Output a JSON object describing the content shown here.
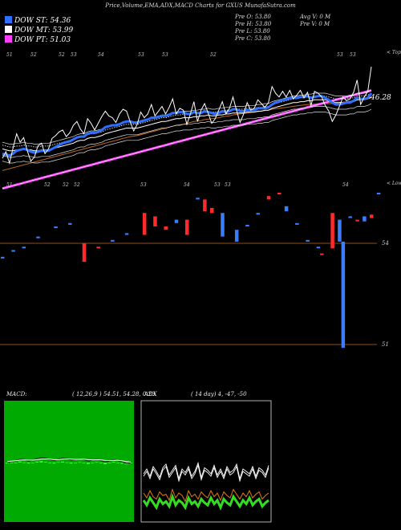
{
  "header": {
    "title": "Price,Volume,EMA,ADX,MACD Charts for GXUS MunafaSutra.com",
    "legend": [
      {
        "label": "DOW ST: 54.36",
        "color": "#2f6fff"
      },
      {
        "label": "DOW MT: 53.99",
        "color": "#ffffff"
      },
      {
        "label": "DOW PT: 51.03",
        "color": "#ff3cff"
      }
    ],
    "stats_left": [
      "Pre  O: 53.80",
      "Pre  H: 53.80",
      "Pre  L: 53.80",
      "Pre  C: 53.80"
    ],
    "stats_right": [
      "Avg V: 0  M",
      "Pre  V: 0  M"
    ]
  },
  "colors": {
    "price": "#ffffff",
    "ema_short": "#2f6fff",
    "ema_mid": "#ffffff",
    "ema_long": "#ff3cff",
    "ema_orange": "#c2691a",
    "hline": "#c2691a",
    "bar_up": "#ff2a2a",
    "bar_down": "#3a7dff",
    "macd_bg": "#00aa00"
  },
  "chart_data": [
    {
      "type": "line",
      "series": [
        {
          "name": "",
          "role": "price",
          "values": [
            48.5,
            49.2,
            48.0,
            49.6,
            51.1,
            50.2,
            50.7,
            49.3,
            48.2,
            48.6,
            49.8,
            50.1,
            49.0,
            49.5,
            50.6,
            50.9,
            51.3,
            51.5,
            50.8,
            51.2,
            52.0,
            52.4,
            51.6,
            51.1,
            52.7,
            52.2,
            51.5,
            52.2,
            52.9,
            53.5,
            53.0,
            52.8,
            52.3,
            53.2,
            53.7,
            53.5,
            52.4,
            51.4,
            52.1,
            53.4,
            52.8,
            53.2,
            54.2,
            53.0,
            53.5,
            54.0,
            53.2,
            53.9,
            54.8,
            53.2,
            53.8,
            53.6,
            52.1,
            53.2,
            54.5,
            52.4,
            53.6,
            54.3,
            53.3,
            52.2,
            52.7,
            53.6,
            54.5,
            53.2,
            53.8,
            55.0,
            53.6,
            52.3,
            53.2,
            54.4,
            53.6,
            53.8,
            54.7,
            54.3,
            53.9,
            54.4,
            56.1,
            55.4,
            55.0,
            55.6,
            55.0,
            55.7,
            54.8,
            55.2,
            55.7,
            54.9,
            55.5,
            54.1,
            55.6,
            55.4,
            55.0,
            54.1,
            53.5,
            52.4,
            53.1,
            54.0,
            55.0,
            54.6,
            54.8,
            55.5,
            56.8,
            54.2,
            55.0,
            55.6,
            58.2
          ]
        },
        {
          "name": "",
          "role": "ema_short",
          "values": [
            49.0,
            48.9,
            48.8,
            49.0,
            49.3,
            49.4,
            49.5,
            49.4,
            49.2,
            49.1,
            49.2,
            49.3,
            49.3,
            49.3,
            49.5,
            49.7,
            49.9,
            50.1,
            50.2,
            50.3,
            50.5,
            50.7,
            50.8,
            50.8,
            51.1,
            51.2,
            51.2,
            51.3,
            51.5,
            51.8,
            51.9,
            52.0,
            52.0,
            52.1,
            52.3,
            52.4,
            52.4,
            52.3,
            52.3,
            52.4,
            52.5,
            52.6,
            52.8,
            52.8,
            52.9,
            53.0,
            53.0,
            53.1,
            53.3,
            53.3,
            53.4,
            53.4,
            53.2,
            53.2,
            53.4,
            53.3,
            53.3,
            53.5,
            53.4,
            53.3,
            53.2,
            53.3,
            53.5,
            53.4,
            53.5,
            53.7,
            53.7,
            53.5,
            53.5,
            53.6,
            53.6,
            53.6,
            53.8,
            53.8,
            53.8,
            53.9,
            54.2,
            54.4,
            54.5,
            54.7,
            54.7,
            54.9,
            54.9,
            54.9,
            55.0,
            55.0,
            55.1,
            54.9,
            55.0,
            55.1,
            55.1,
            54.9,
            54.7,
            54.4,
            54.2,
            54.2,
            54.3,
            54.4,
            54.4,
            54.6,
            54.9,
            54.8,
            54.8,
            54.9,
            55.4
          ]
        },
        {
          "name": "",
          "role": "ema_mid",
          "values": [
            49.5,
            49.4,
            49.3,
            49.3,
            49.4,
            49.4,
            49.5,
            49.4,
            49.4,
            49.3,
            49.3,
            49.4,
            49.4,
            49.4,
            49.5,
            49.6,
            49.7,
            49.8,
            49.9,
            50.0,
            50.1,
            50.3,
            50.4,
            50.4,
            50.6,
            50.7,
            50.7,
            50.8,
            50.9,
            51.1,
            51.2,
            51.3,
            51.4,
            51.5,
            51.6,
            51.7,
            51.7,
            51.7,
            51.7,
            51.8,
            51.9,
            52.0,
            52.1,
            52.2,
            52.3,
            52.4,
            52.4,
            52.5,
            52.6,
            52.7,
            52.7,
            52.8,
            52.8,
            52.8,
            52.9,
            52.9,
            53.0,
            53.0,
            53.1,
            53.0,
            53.0,
            53.1,
            53.1,
            53.2,
            53.2,
            53.3,
            53.3,
            53.3,
            53.3,
            53.4,
            53.4,
            53.4,
            53.5,
            53.5,
            53.6,
            53.6,
            53.8,
            53.9,
            54.0,
            54.1,
            54.2,
            54.3,
            54.4,
            54.4,
            54.5,
            54.5,
            54.6,
            54.6,
            54.7,
            54.7,
            54.7,
            54.7,
            54.6,
            54.5,
            54.4,
            54.4,
            54.4,
            54.4,
            54.5,
            54.5,
            54.7,
            54.7,
            54.7,
            54.8,
            55.0
          ]
        },
        {
          "name": "",
          "role": "ema_orange",
          "values": [
            47.2,
            47.3,
            47.4,
            47.5,
            47.6,
            47.7,
            47.8,
            47.9,
            48.0,
            48.1,
            48.2,
            48.3,
            48.4,
            48.5,
            48.6,
            48.7,
            48.8,
            48.9,
            49.0,
            49.1,
            49.2,
            49.3,
            49.4,
            49.5,
            49.6,
            49.7,
            49.8,
            49.9,
            50.0,
            50.1,
            50.2,
            50.3,
            50.4,
            50.5,
            50.6,
            50.7,
            50.8,
            50.85,
            50.9,
            51.0,
            51.1,
            51.2,
            51.3,
            51.4,
            51.5,
            51.6,
            51.7,
            51.8,
            51.9,
            52.0,
            52.05,
            52.1,
            52.2,
            52.3,
            52.4,
            52.45,
            52.5,
            52.6,
            52.65,
            52.7,
            52.75,
            52.8,
            52.9,
            52.95,
            53.0,
            53.1,
            53.15,
            53.2,
            53.25,
            53.3,
            53.35,
            53.4,
            53.45,
            53.5,
            53.55,
            53.6,
            53.7,
            53.75,
            53.8,
            53.85,
            53.9,
            53.95,
            54.0,
            54.05,
            54.1,
            54.15,
            54.2,
            54.2,
            54.25,
            54.3,
            54.3,
            54.3,
            54.3,
            54.3,
            54.35,
            54.4,
            54.45,
            54.5,
            54.55,
            54.6,
            54.7,
            54.75,
            54.8,
            54.85,
            54.9
          ]
        },
        {
          "name": "",
          "role": "ema_long",
          "values": [
            45.3,
            45.4,
            45.5,
            45.6,
            45.7,
            45.8,
            45.9,
            46.0,
            46.1,
            46.2,
            46.3,
            46.4,
            46.5,
            46.6,
            46.7,
            46.8,
            46.9,
            47.0,
            47.1,
            47.2,
            47.3,
            47.4,
            47.5,
            47.6,
            47.7,
            47.8,
            47.9,
            48.0,
            48.1,
            48.2,
            48.3,
            48.4,
            48.5,
            48.6,
            48.7,
            48.8,
            48.9,
            49.0,
            49.1,
            49.2,
            49.3,
            49.4,
            49.5,
            49.6,
            49.7,
            49.8,
            49.9,
            50.0,
            50.1,
            50.2,
            50.3,
            50.4,
            50.5,
            50.6,
            50.7,
            50.8,
            50.9,
            51.0,
            51.1,
            51.2,
            51.3,
            51.4,
            51.5,
            51.6,
            51.7,
            51.8,
            51.9,
            52.0,
            52.1,
            52.2,
            52.3,
            52.4,
            52.5,
            52.6,
            52.7,
            52.8,
            52.9,
            53.0,
            53.1,
            53.2,
            53.3,
            53.4,
            53.5,
            53.6,
            53.7,
            53.8,
            53.9,
            54.0,
            54.1,
            54.2,
            54.3,
            54.4,
            54.5,
            54.6,
            54.7,
            54.8,
            54.9,
            55.0,
            55.1,
            55.2,
            55.3,
            55.4,
            55.5,
            55.6,
            55.7
          ]
        }
      ],
      "top_ticks": [
        "51",
        "52",
        "52",
        "53",
        "54",
        "53",
        "53",
        "52",
        "53"
      ],
      "bottom_ticks": [
        "51",
        "52",
        "52",
        "52",
        "53",
        "54",
        "53",
        "53",
        "54"
      ],
      "top_right_label": "< Tops",
      "bottom_right_label": "< Lows",
      "price_label": "46.28"
    },
    {
      "type": "bar",
      "role": "volume-change-bars",
      "ylim": [
        50.5,
        55.5
      ],
      "reference_lines": [
        54,
        51
      ],
      "tick_labels": [
        "54",
        "51"
      ],
      "bars": [
        {
          "x": 0,
          "top": 53.6,
          "bottom": 53.55,
          "dir": "down"
        },
        {
          "x": 3,
          "top": 53.8,
          "bottom": 53.75,
          "dir": "down"
        },
        {
          "x": 6,
          "top": 53.9,
          "bottom": 53.85,
          "dir": "down"
        },
        {
          "x": 10,
          "top": 54.2,
          "bottom": 54.15,
          "dir": "down"
        },
        {
          "x": 15,
          "top": 54.5,
          "bottom": 54.45,
          "dir": "down"
        },
        {
          "x": 19,
          "top": 54.6,
          "bottom": 54.55,
          "dir": "down"
        },
        {
          "x": 23,
          "top": 54.0,
          "bottom": 53.45,
          "dir": "up"
        },
        {
          "x": 27,
          "top": 53.9,
          "bottom": 53.85,
          "dir": "up"
        },
        {
          "x": 31,
          "top": 54.1,
          "bottom": 54.05,
          "dir": "down"
        },
        {
          "x": 35,
          "top": 54.3,
          "bottom": 54.25,
          "dir": "down"
        },
        {
          "x": 40,
          "top": 54.9,
          "bottom": 54.25,
          "dir": "up"
        },
        {
          "x": 43,
          "top": 54.8,
          "bottom": 54.5,
          "dir": "up"
        },
        {
          "x": 46,
          "top": 54.5,
          "bottom": 54.4,
          "dir": "up"
        },
        {
          "x": 49,
          "top": 54.7,
          "bottom": 54.6,
          "dir": "down"
        },
        {
          "x": 52,
          "top": 54.7,
          "bottom": 54.25,
          "dir": "up"
        },
        {
          "x": 55,
          "top": 55.35,
          "bottom": 55.3,
          "dir": "down"
        },
        {
          "x": 57,
          "top": 55.3,
          "bottom": 54.95,
          "dir": "up"
        },
        {
          "x": 59,
          "top": 55.05,
          "bottom": 54.9,
          "dir": "up"
        },
        {
          "x": 62,
          "top": 54.9,
          "bottom": 54.2,
          "dir": "down"
        },
        {
          "x": 66,
          "top": 54.4,
          "bottom": 54.05,
          "dir": "down"
        },
        {
          "x": 69,
          "top": 54.55,
          "bottom": 54.5,
          "dir": "down"
        },
        {
          "x": 72,
          "top": 54.9,
          "bottom": 54.85,
          "dir": "down"
        },
        {
          "x": 75,
          "top": 55.4,
          "bottom": 55.3,
          "dir": "up"
        },
        {
          "x": 78,
          "top": 55.5,
          "bottom": 55.45,
          "dir": "up"
        },
        {
          "x": 80,
          "top": 55.1,
          "bottom": 54.95,
          "dir": "down"
        },
        {
          "x": 83,
          "top": 54.6,
          "bottom": 54.55,
          "dir": "down"
        },
        {
          "x": 86,
          "top": 54.1,
          "bottom": 54.05,
          "dir": "down"
        },
        {
          "x": 89,
          "top": 53.9,
          "bottom": 53.85,
          "dir": "down"
        },
        {
          "x": 90,
          "top": 53.7,
          "bottom": 53.65,
          "dir": "up"
        },
        {
          "x": 93,
          "top": 54.9,
          "bottom": 53.85,
          "dir": "up"
        },
        {
          "x": 95,
          "top": 54.7,
          "bottom": 54.05,
          "dir": "down"
        },
        {
          "x": 96,
          "top": 54.05,
          "bottom": 50.9,
          "dir": "down"
        },
        {
          "x": 98,
          "top": 54.8,
          "bottom": 54.75,
          "dir": "down"
        },
        {
          "x": 100,
          "top": 54.7,
          "bottom": 54.65,
          "dir": "up"
        },
        {
          "x": 102,
          "top": 54.8,
          "bottom": 54.65,
          "dir": "down"
        },
        {
          "x": 104,
          "top": 54.85,
          "bottom": 54.75,
          "dir": "up"
        },
        {
          "x": 106,
          "top": 55.5,
          "bottom": 55.45,
          "dir": "down"
        }
      ]
    },
    {
      "type": "line",
      "title": "MACD:",
      "params": "( 12,26,9 ) 54.51, 54.28, 0.23",
      "series": [
        {
          "name": "",
          "values": [
            0.0,
            0.2,
            0.4,
            0.7,
            0.6,
            0.3,
            0.5,
            0.8,
            1.0,
            0.9,
            0.6,
            0.4,
            0.7,
            0.9,
            0.8,
            0.5,
            0.6,
            0.8,
            0.6,
            0.3,
            0.5,
            0.7,
            0.4,
            0.1,
            0.3,
            0.6,
            0.4,
            0.1,
            -0.2,
            0.0
          ]
        },
        {
          "name": "",
          "values": [
            0.2,
            0.3,
            0.4,
            0.5,
            0.55,
            0.5,
            0.5,
            0.6,
            0.7,
            0.75,
            0.7,
            0.6,
            0.6,
            0.7,
            0.75,
            0.7,
            0.65,
            0.7,
            0.68,
            0.6,
            0.55,
            0.6,
            0.55,
            0.45,
            0.4,
            0.45,
            0.45,
            0.35,
            0.2,
            0.1
          ]
        }
      ],
      "histogram": [
        -0.2,
        -0.1,
        0.0,
        0.2,
        0.05,
        -0.2,
        0.0,
        0.2,
        0.3,
        0.15,
        -0.1,
        -0.2,
        0.1,
        0.2,
        0.05,
        -0.2,
        -0.05,
        0.1,
        -0.08,
        -0.3,
        -0.05,
        0.1,
        -0.15,
        -0.35,
        -0.1,
        0.15,
        -0.05,
        -0.25,
        -0.4,
        -0.1
      ],
      "ylim": [
        -6,
        6
      ]
    },
    {
      "type": "line",
      "title": "ADX",
      "params": "( 14  day) 4, -47, -50",
      "series": [
        {
          "name": "",
          "values": [
            40,
            44,
            38,
            46,
            42,
            37,
            45,
            48,
            39,
            43,
            47,
            36,
            44,
            41,
            46,
            38,
            42,
            49,
            37,
            45,
            43,
            40,
            47,
            39,
            44,
            38,
            46,
            41,
            43,
            48,
            36,
            44,
            42,
            40,
            46,
            38,
            45,
            43,
            39,
            47
          ]
        },
        {
          "name": "",
          "values": [
            18,
            14,
            20,
            16,
            12,
            19,
            15,
            17,
            13,
            21,
            14,
            18,
            16,
            12,
            20,
            15,
            17,
            13,
            19,
            16,
            14,
            20,
            15,
            18,
            12,
            19,
            16,
            14,
            21,
            17,
            13,
            18,
            15,
            20,
            14,
            17,
            19,
            13,
            16,
            18
          ]
        },
        {
          "name": "",
          "values": [
            24,
            20,
            26,
            21,
            19,
            25,
            22,
            23,
            18,
            27,
            20,
            24,
            22,
            17,
            26,
            21,
            23,
            19,
            25,
            22,
            20,
            26,
            21,
            24,
            18,
            25,
            22,
            20,
            27,
            23,
            19,
            24,
            21,
            26,
            20,
            23,
            25,
            19,
            22,
            24
          ]
        }
      ],
      "ylim": [
        0,
        100
      ]
    }
  ]
}
